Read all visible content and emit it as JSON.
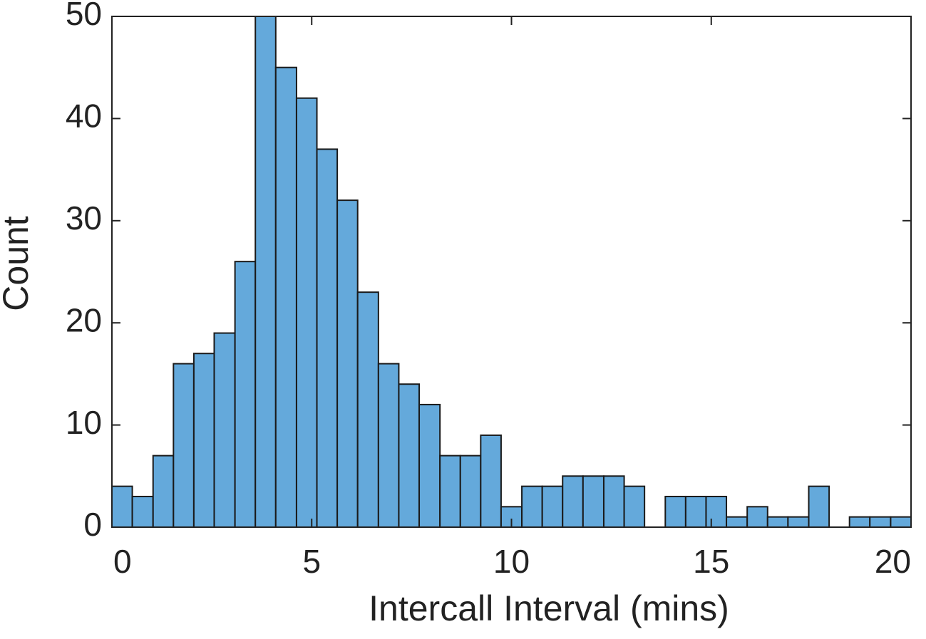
{
  "chart_data": {
    "type": "histogram",
    "xlabel": "Intercall Interval (mins)",
    "ylabel": "Count",
    "bins": [
      0,
      0.51,
      1.03,
      1.54,
      2.05,
      2.56,
      3.08,
      3.59,
      4.1,
      4.62,
      5.13,
      5.64,
      6.15,
      6.67,
      7.18,
      7.69,
      8.21,
      8.72,
      9.23,
      9.74,
      10.26,
      10.77,
      11.28,
      11.79,
      12.31,
      12.82,
      13.33,
      13.85,
      14.36,
      14.87,
      15.38,
      15.9,
      16.41,
      16.92,
      17.44,
      17.95,
      18.46,
      18.97,
      19.49,
      20
    ],
    "values": [
      4,
      3,
      7,
      16,
      17,
      19,
      26,
      50,
      45,
      42,
      37,
      32,
      23,
      16,
      14,
      12,
      7,
      7,
      9,
      2,
      4,
      4,
      5,
      5,
      5,
      4,
      0,
      3,
      3,
      3,
      1,
      2,
      1,
      1,
      4,
      0,
      1,
      1,
      1
    ],
    "color": "#64a9db",
    "edgecolor": "#1a1a1a",
    "xlim": [
      0,
      20
    ],
    "xticks": [
      0,
      5,
      10,
      15,
      20
    ],
    "ylim": [
      0,
      50
    ],
    "yticks": [
      0,
      10,
      20,
      30,
      40,
      50
    ],
    "box": true
  }
}
